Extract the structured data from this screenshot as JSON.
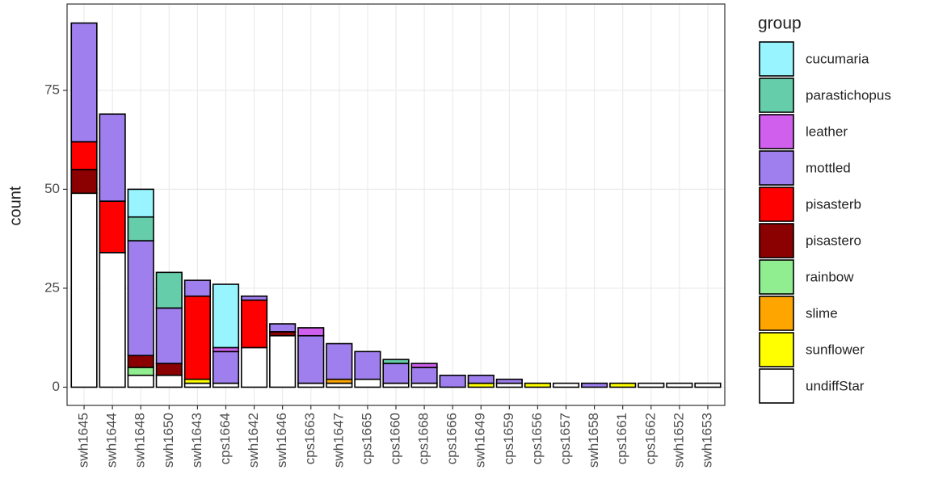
{
  "chart_data": {
    "type": "stacked_bar",
    "y_label": "count",
    "legend_title": "group",
    "legend_position": "right",
    "grid": true,
    "categories": [
      "swh1645",
      "swh1644",
      "swh1648",
      "swh1650",
      "swh1643",
      "cps1664",
      "swh1642",
      "swh1646",
      "cps1663",
      "swh1647",
      "cps1665",
      "cps1660",
      "cps1668",
      "cps1666",
      "swh1649",
      "cps1659",
      "cps1656",
      "cps1657",
      "swh1658",
      "cps1661",
      "cps1662",
      "swh1652",
      "swh1653"
    ],
    "ylim": [
      -4.6,
      96.8
    ],
    "yticks": [
      0,
      25,
      50,
      75
    ],
    "series": [
      {
        "name": "cucumaria",
        "color": "#98f5ff",
        "values": [
          0,
          0,
          7,
          0,
          0,
          16,
          0,
          0,
          0,
          0,
          0,
          0,
          0,
          0,
          0,
          0,
          0,
          0,
          0,
          0,
          0,
          0,
          0
        ]
      },
      {
        "name": "parastichopus",
        "color": "#66cdaa",
        "values": [
          0,
          0,
          6,
          9,
          0,
          0,
          0,
          0,
          0,
          0,
          0,
          1,
          0,
          0,
          0,
          0,
          0,
          0,
          0,
          0,
          0,
          0,
          0
        ]
      },
      {
        "name": "leather",
        "color": "#d15fee",
        "values": [
          0,
          0,
          0,
          0,
          0,
          1,
          0,
          0,
          2,
          0,
          0,
          0,
          1,
          0,
          0,
          0,
          0,
          0,
          0,
          0,
          0,
          0,
          0
        ]
      },
      {
        "name": "mottled",
        "color": "#9f7fee",
        "values": [
          30,
          22,
          29,
          14,
          4,
          8,
          1,
          2,
          12,
          9,
          7,
          5,
          4,
          3,
          2,
          1,
          0,
          0,
          1,
          0,
          0,
          0,
          0
        ]
      },
      {
        "name": "pisasterb",
        "color": "#ff0000",
        "values": [
          7,
          13,
          0,
          0,
          21,
          0,
          12,
          0,
          0,
          0,
          0,
          0,
          0,
          0,
          0,
          0,
          0,
          0,
          0,
          0,
          0,
          0,
          0
        ]
      },
      {
        "name": "pisastero",
        "color": "#8b0000",
        "values": [
          6,
          0,
          3,
          3,
          0,
          0,
          0,
          1,
          0,
          0,
          0,
          0,
          0,
          0,
          0,
          0,
          0,
          0,
          0,
          0,
          0,
          0,
          0
        ]
      },
      {
        "name": "rainbow",
        "color": "#90ee90",
        "values": [
          0,
          0,
          2,
          0,
          0,
          0,
          0,
          0,
          0,
          0,
          0,
          0,
          0,
          0,
          0,
          0,
          0,
          0,
          0,
          0,
          0,
          0,
          0
        ]
      },
      {
        "name": "slime",
        "color": "#ffa500",
        "values": [
          0,
          0,
          0,
          0,
          0,
          0,
          0,
          0,
          0,
          1,
          0,
          0,
          0,
          0,
          0,
          0,
          0,
          0,
          0,
          0,
          0,
          0,
          0
        ]
      },
      {
        "name": "sunflower",
        "color": "#ffff00",
        "values": [
          0,
          0,
          0,
          0,
          1,
          0,
          0,
          0,
          0,
          0,
          0,
          0,
          0,
          0,
          1,
          0,
          1,
          0,
          0,
          1,
          0,
          0,
          0
        ]
      },
      {
        "name": "undiffStar",
        "color": "#ffffff",
        "values": [
          49,
          34,
          3,
          3,
          1,
          1,
          10,
          13,
          1,
          1,
          2,
          1,
          1,
          0,
          0,
          1,
          0,
          1,
          0,
          0,
          1,
          1,
          1
        ]
      }
    ]
  }
}
